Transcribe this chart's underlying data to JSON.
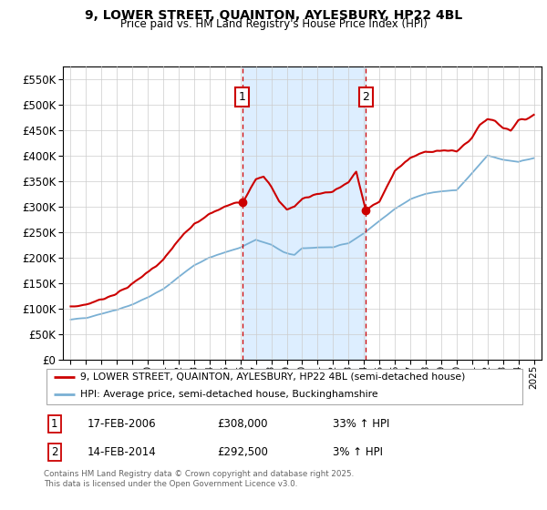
{
  "title_line1": "9, LOWER STREET, QUAINTON, AYLESBURY, HP22 4BL",
  "title_line2": "Price paid vs. HM Land Registry's House Price Index (HPI)",
  "legend_line1": "9, LOWER STREET, QUAINTON, AYLESBURY, HP22 4BL (semi-detached house)",
  "legend_line2": "HPI: Average price, semi-detached house, Buckinghamshire",
  "footnote": "Contains HM Land Registry data © Crown copyright and database right 2025.\nThis data is licensed under the Open Government Licence v3.0.",
  "sale1_label": "1",
  "sale1_date": "17-FEB-2006",
  "sale1_price": "£308,000",
  "sale1_hpi": "33% ↑ HPI",
  "sale2_label": "2",
  "sale2_date": "14-FEB-2014",
  "sale2_price": "£292,500",
  "sale2_hpi": "3% ↑ HPI",
  "sale1_x": 2006.12,
  "sale1_y": 308000,
  "sale2_x": 2014.12,
  "sale2_y": 292500,
  "red_color": "#cc0000",
  "blue_color": "#7ab0d4",
  "vline_color": "#cc0000",
  "shade_color": "#ddeeff",
  "ylim_min": 0,
  "ylim_max": 575000,
  "yticks": [
    0,
    50000,
    100000,
    150000,
    200000,
    250000,
    300000,
    350000,
    400000,
    450000,
    500000,
    550000
  ],
  "xlim_min": 1994.5,
  "xlim_max": 2025.5,
  "xticks": [
    1995,
    1996,
    1997,
    1998,
    1999,
    2000,
    2001,
    2002,
    2003,
    2004,
    2005,
    2006,
    2007,
    2008,
    2009,
    2010,
    2011,
    2012,
    2013,
    2014,
    2015,
    2016,
    2017,
    2018,
    2019,
    2020,
    2021,
    2022,
    2023,
    2024,
    2025
  ],
  "blue_anchors_x": [
    1995.0,
    1996.0,
    1997.0,
    1998.0,
    1999.0,
    2000.0,
    2001.0,
    2002.0,
    2003.0,
    2004.0,
    2005.0,
    2006.0,
    2007.0,
    2008.0,
    2008.8,
    2009.5,
    2010.0,
    2011.0,
    2012.0,
    2013.0,
    2014.0,
    2015.0,
    2016.0,
    2017.0,
    2018.0,
    2019.0,
    2020.0,
    2021.0,
    2022.0,
    2023.0,
    2024.0,
    2025.0
  ],
  "blue_anchors_y": [
    78000,
    82000,
    90000,
    98000,
    108000,
    122000,
    138000,
    162000,
    185000,
    200000,
    210000,
    220000,
    235000,
    225000,
    210000,
    205000,
    218000,
    220000,
    220000,
    228000,
    248000,
    272000,
    295000,
    315000,
    325000,
    330000,
    332000,
    365000,
    400000,
    392000,
    388000,
    395000
  ],
  "red_anchors_x": [
    1995.0,
    1996.0,
    1997.0,
    1998.0,
    1999.0,
    2000.0,
    2001.0,
    2002.0,
    2003.0,
    2004.0,
    2005.0,
    2005.8,
    2006.12,
    2007.0,
    2007.5,
    2008.0,
    2008.5,
    2009.0,
    2009.5,
    2010.0,
    2011.0,
    2012.0,
    2013.0,
    2013.5,
    2014.12,
    2015.0,
    2016.0,
    2017.0,
    2018.0,
    2019.0,
    2020.0,
    2021.0,
    2021.5,
    2022.0,
    2022.5,
    2023.0,
    2023.5,
    2024.0,
    2024.5,
    2025.0
  ],
  "red_anchors_y": [
    103000,
    108000,
    118000,
    130000,
    148000,
    172000,
    195000,
    235000,
    265000,
    285000,
    300000,
    308000,
    308000,
    355000,
    360000,
    338000,
    310000,
    295000,
    300000,
    315000,
    325000,
    330000,
    348000,
    368000,
    292500,
    310000,
    370000,
    395000,
    408000,
    410000,
    408000,
    435000,
    460000,
    472000,
    468000,
    455000,
    450000,
    468000,
    472000,
    480000
  ]
}
